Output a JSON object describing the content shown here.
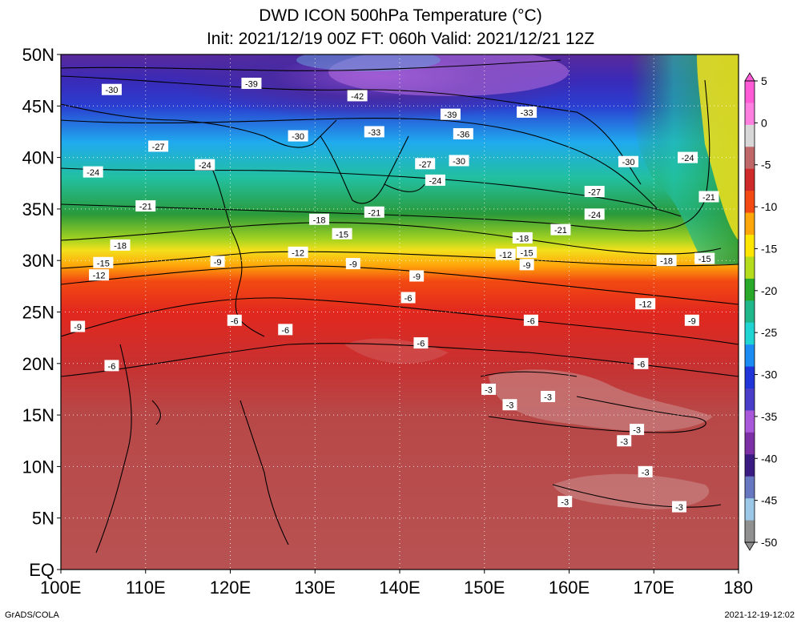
{
  "header": {
    "title": "DWD ICON 500hPa Temperature (°C)",
    "subtitle": "Init: 2021/12/19 00Z  FT: 060h  Valid: 2021/12/21 12Z"
  },
  "axes": {
    "lat_labels": [
      "50N",
      "45N",
      "40N",
      "35N",
      "30N",
      "25N",
      "20N",
      "15N",
      "10N",
      "5N",
      "EQ"
    ],
    "lon_labels": [
      "100E",
      "110E",
      "120E",
      "130E",
      "140E",
      "150E",
      "160E",
      "170E",
      "180"
    ]
  },
  "colorbar": {
    "labels": [
      "5",
      "0",
      "-5",
      "-10",
      "-15",
      "-20",
      "-25",
      "-30",
      "-35",
      "-40",
      "-45",
      "-50"
    ],
    "colors": [
      "#ff5bd7",
      "#ff7fe0",
      "#d7d7d7",
      "#c06868",
      "#cf2a2a",
      "#f24a12",
      "#ffa60a",
      "#ffe600",
      "#b6dc1e",
      "#2aa82a",
      "#20b88a",
      "#20d4d4",
      "#1c8cf2",
      "#2036d8",
      "#4a3ec8",
      "#a858d8",
      "#7d2fa6",
      "#3b1b82",
      "#6878c0",
      "#9ac8e6",
      "#909090"
    ]
  },
  "field_colors": {
    "deep_cold": "#5a2a9a",
    "cold": "#2a3ed0",
    "cool": "#20aaee",
    "teal": "#22c0a0",
    "green": "#2a9a3a",
    "yellow": "#f2e01c",
    "orange": "#f28a12",
    "red": "#e2281e",
    "warm_red": "#c43838",
    "tropic": "#b85252",
    "tropic_light": "#c78080"
  },
  "contour_labels": [
    {
      "text": "-30",
      "lon": 106.0,
      "lat": 46.6
    },
    {
      "text": "-39",
      "lon": 122.5,
      "lat": 47.2
    },
    {
      "text": "-42",
      "lon": 135.0,
      "lat": 46.0
    },
    {
      "text": "-39",
      "lon": 146.0,
      "lat": 44.2
    },
    {
      "text": "-33",
      "lon": 155.0,
      "lat": 44.4
    },
    {
      "text": "-36",
      "lon": 147.5,
      "lat": 42.3
    },
    {
      "text": "-33",
      "lon": 137.0,
      "lat": 42.5
    },
    {
      "text": "-30",
      "lon": 128.0,
      "lat": 42.1
    },
    {
      "text": "-27",
      "lon": 111.5,
      "lat": 41.1
    },
    {
      "text": "-30",
      "lon": 147.0,
      "lat": 39.7
    },
    {
      "text": "-30",
      "lon": 167.0,
      "lat": 39.6
    },
    {
      "text": "-24",
      "lon": 174.0,
      "lat": 40.0
    },
    {
      "text": "-24",
      "lon": 103.8,
      "lat": 38.6
    },
    {
      "text": "-24",
      "lon": 117.0,
      "lat": 39.3
    },
    {
      "text": "-27",
      "lon": 143.0,
      "lat": 39.4
    },
    {
      "text": "-24",
      "lon": 144.2,
      "lat": 37.8
    },
    {
      "text": "-27",
      "lon": 163.0,
      "lat": 36.7
    },
    {
      "text": "-21",
      "lon": 176.5,
      "lat": 36.2
    },
    {
      "text": "-21",
      "lon": 110.0,
      "lat": 35.3
    },
    {
      "text": "-21",
      "lon": 137.0,
      "lat": 34.7
    },
    {
      "text": "-18",
      "lon": 130.5,
      "lat": 34.0
    },
    {
      "text": "-24",
      "lon": 163.0,
      "lat": 34.5
    },
    {
      "text": "-21",
      "lon": 159.0,
      "lat": 33.0
    },
    {
      "text": "-15",
      "lon": 133.2,
      "lat": 32.6
    },
    {
      "text": "-18",
      "lon": 154.5,
      "lat": 32.2
    },
    {
      "text": "-18",
      "lon": 107.0,
      "lat": 31.5
    },
    {
      "text": "-12",
      "lon": 128.0,
      "lat": 30.8
    },
    {
      "text": "-12",
      "lon": 152.5,
      "lat": 30.6
    },
    {
      "text": "-15",
      "lon": 155.0,
      "lat": 30.8
    },
    {
      "text": "-18",
      "lon": 171.5,
      "lat": 30.0
    },
    {
      "text": "-15",
      "lon": 176.0,
      "lat": 30.2
    },
    {
      "text": "-15",
      "lon": 105.0,
      "lat": 29.8
    },
    {
      "text": "-9",
      "lon": 118.5,
      "lat": 29.9
    },
    {
      "text": "-12",
      "lon": 104.5,
      "lat": 28.6
    },
    {
      "text": "-9",
      "lon": 134.5,
      "lat": 29.7
    },
    {
      "text": "-9",
      "lon": 155.0,
      "lat": 29.6
    },
    {
      "text": "-9",
      "lon": 142.0,
      "lat": 28.5
    },
    {
      "text": "-6",
      "lon": 141.0,
      "lat": 26.4
    },
    {
      "text": "-12",
      "lon": 169.0,
      "lat": 25.8
    },
    {
      "text": "-6",
      "lon": 120.5,
      "lat": 24.2
    },
    {
      "text": "-6",
      "lon": 155.5,
      "lat": 24.2
    },
    {
      "text": "-9",
      "lon": 174.5,
      "lat": 24.2
    },
    {
      "text": "-9",
      "lon": 102.0,
      "lat": 23.6
    },
    {
      "text": "-6",
      "lon": 126.5,
      "lat": 23.3
    },
    {
      "text": "-6",
      "lon": 142.5,
      "lat": 22.0
    },
    {
      "text": "-6",
      "lon": 168.5,
      "lat": 20.0
    },
    {
      "text": "-6",
      "lon": 106.0,
      "lat": 19.8
    },
    {
      "text": "-3",
      "lon": 150.5,
      "lat": 17.5
    },
    {
      "text": "-3",
      "lon": 157.5,
      "lat": 16.8
    },
    {
      "text": "-3",
      "lon": 153.0,
      "lat": 16.0
    },
    {
      "text": "-3",
      "lon": 168.0,
      "lat": 13.6
    },
    {
      "text": "-3",
      "lon": 166.5,
      "lat": 12.5
    },
    {
      "text": "-3",
      "lon": 169.0,
      "lat": 9.5
    },
    {
      "text": "-3",
      "lon": 159.5,
      "lat": 6.6
    },
    {
      "text": "-3",
      "lon": 173.0,
      "lat": 6.1
    }
  ],
  "footer": {
    "credit": "GrADS/COLA",
    "timestamp": "2021-12-19-12:02"
  }
}
